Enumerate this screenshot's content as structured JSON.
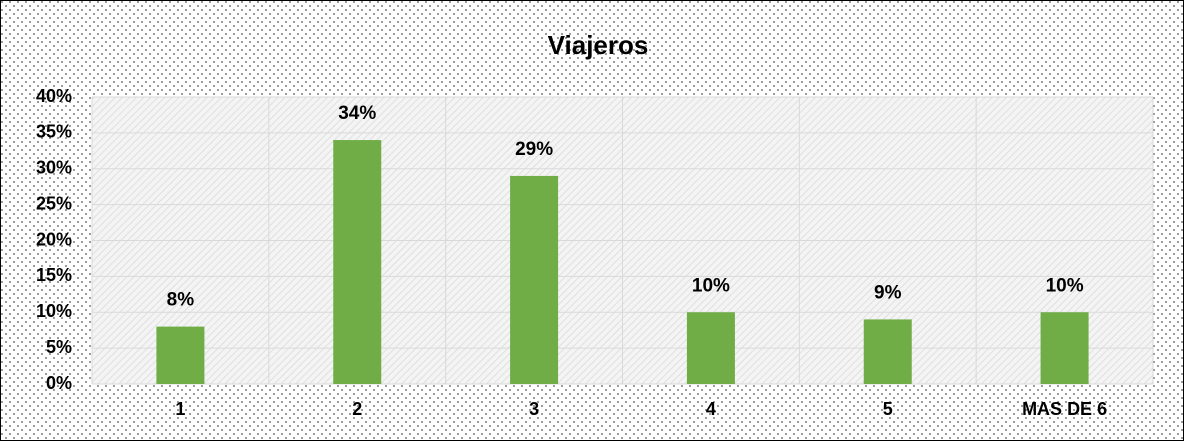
{
  "chart_data": {
    "type": "bar",
    "title": "Viajeros",
    "categories": [
      "1",
      "2",
      "3",
      "4",
      "5",
      "MAS DE 6"
    ],
    "values": [
      8,
      34,
      29,
      10,
      9,
      10
    ],
    "value_labels": [
      "8%",
      "34%",
      "29%",
      "10%",
      "9%",
      "10%"
    ],
    "color": "#70ad47",
    "ylim": [
      0,
      40
    ],
    "yticks": [
      {
        "value": 0,
        "label": "0%"
      },
      {
        "value": 5,
        "label": "5%"
      },
      {
        "value": 10,
        "label": "10%"
      },
      {
        "value": 15,
        "label": "15%"
      },
      {
        "value": 20,
        "label": "20%"
      },
      {
        "value": 25,
        "label": "25%"
      },
      {
        "value": 30,
        "label": "30%"
      },
      {
        "value": 35,
        "label": "35%"
      },
      {
        "value": 40,
        "label": "40%"
      }
    ],
    "grid": true
  }
}
